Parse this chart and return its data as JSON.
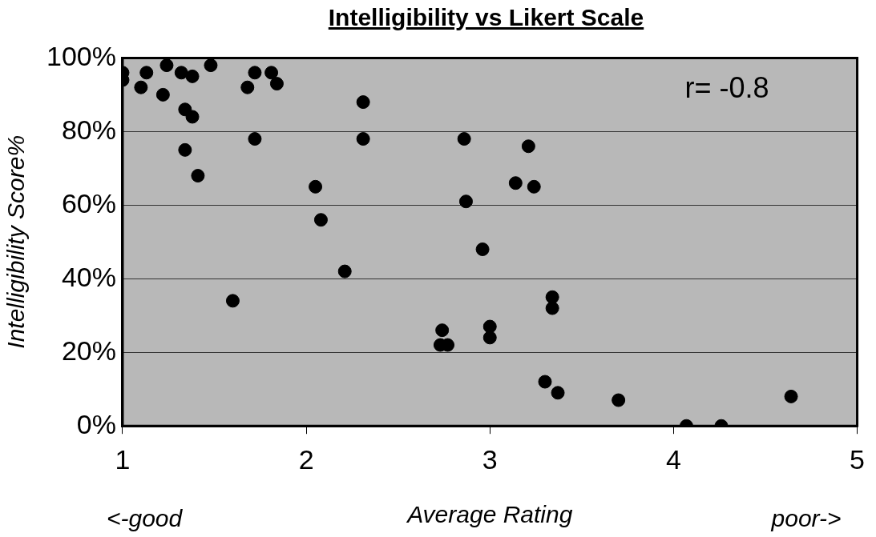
{
  "chart_data": {
    "type": "scatter",
    "title": "Intelligibility vs Likert Scale",
    "xlabel": "Average Rating",
    "ylabel": "Intelligibility Score%",
    "annotations": [
      "r= -0.8",
      "<-good",
      "poor->"
    ],
    "xlim": [
      1,
      5
    ],
    "xticks": [
      1,
      2,
      3,
      4,
      5
    ],
    "ylim": [
      0,
      100
    ],
    "yticks": [
      {
        "value": 0,
        "label": "0%"
      },
      {
        "value": 20,
        "label": "20%"
      },
      {
        "value": 40,
        "label": "40%"
      },
      {
        "value": 60,
        "label": "60%"
      },
      {
        "value": 80,
        "label": "80%"
      },
      {
        "value": 100,
        "label": "100%"
      }
    ],
    "grid": "y",
    "marker": "circle",
    "series": [
      {
        "color": "#000000",
        "x": [
          1.0,
          1.0,
          1.13,
          1.1,
          1.24,
          1.22,
          1.48,
          1.32,
          1.38,
          1.34,
          1.38,
          1.72,
          1.81,
          1.68,
          1.84,
          2.31,
          1.34,
          1.72,
          2.31,
          1.41,
          2.05,
          2.08,
          2.86,
          2.87,
          2.21,
          1.6,
          3.21,
          3.14,
          3.24,
          2.96,
          3.34,
          3.34,
          3.0,
          3.0,
          2.74,
          2.77,
          2.73,
          3.3,
          3.37,
          3.7,
          4.64,
          4.07,
          4.26
        ],
        "values": [
          96,
          94,
          96,
          92,
          98,
          90,
          98,
          96,
          95,
          86,
          84,
          96,
          96,
          92,
          93,
          88,
          75,
          78,
          78,
          68,
          65,
          56,
          78,
          61,
          42,
          34,
          76,
          66,
          65,
          48,
          35,
          32,
          27,
          24,
          26,
          22,
          22,
          12,
          9,
          7,
          8,
          0,
          0
        ]
      }
    ]
  }
}
